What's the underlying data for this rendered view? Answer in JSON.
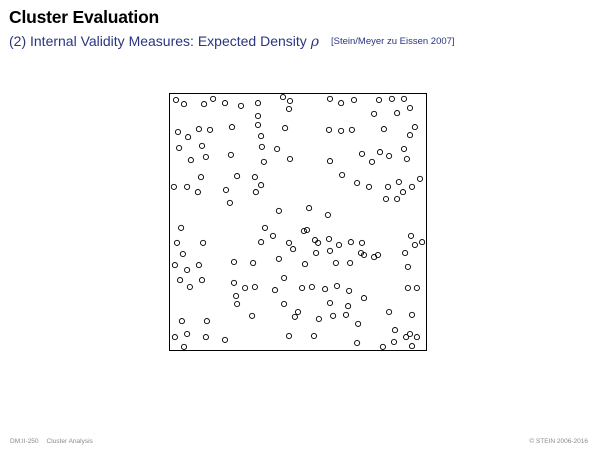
{
  "slide": {
    "title": "Cluster Evaluation",
    "subtitle": "(2) Internal Validity Measures: Expected Density",
    "symbol": "ρ",
    "citation": "[Stein/Meyer zu Eissen 2007]"
  },
  "footer": {
    "page": "DM:II-250",
    "section": "Cluster Analysis",
    "copyright": "© STEIN 2006-2016"
  },
  "colors": {
    "title": "#000000",
    "subtitle": "#2a3580",
    "footer": "#8a8a8a",
    "points": "#000000"
  },
  "chart_data": {
    "type": "scatter",
    "title": "",
    "xlabel": "",
    "ylabel": "",
    "xlim": [
      0,
      100
    ],
    "ylim": [
      0,
      100
    ],
    "grid": false,
    "points": [
      [
        2.7,
        97.3
      ],
      [
        5.8,
        95.7
      ],
      [
        13.6,
        95.7
      ],
      [
        17.1,
        97.7
      ],
      [
        21.7,
        96.1
      ],
      [
        27.9,
        95.0
      ],
      [
        34.5,
        96.1
      ],
      [
        44.2,
        98.4
      ],
      [
        46.5,
        93.8
      ],
      [
        62.4,
        97.7
      ],
      [
        66.7,
        96.1
      ],
      [
        71.7,
        97.3
      ],
      [
        81.4,
        97.3
      ],
      [
        86.4,
        97.7
      ],
      [
        91.1,
        97.7
      ],
      [
        88.4,
        92.2
      ],
      [
        93.4,
        94.2
      ],
      [
        79.5,
        91.9
      ],
      [
        34.5,
        91.1
      ],
      [
        46.9,
        96.9
      ],
      [
        3.5,
        84.9
      ],
      [
        7.4,
        82.9
      ],
      [
        11.6,
        86.0
      ],
      [
        15.9,
        85.7
      ],
      [
        24.4,
        86.8
      ],
      [
        34.5,
        87.6
      ],
      [
        45.0,
        86.4
      ],
      [
        62.0,
        85.7
      ],
      [
        66.7,
        85.3
      ],
      [
        70.9,
        85.7
      ],
      [
        83.3,
        86.0
      ],
      [
        95.3,
        86.8
      ],
      [
        93.4,
        83.7
      ],
      [
        35.7,
        83.3
      ],
      [
        3.9,
        78.7
      ],
      [
        12.8,
        79.5
      ],
      [
        14.3,
        75.2
      ],
      [
        24.0,
        76.0
      ],
      [
        36.0,
        79.1
      ],
      [
        41.9,
        78.3
      ],
      [
        46.9,
        74.4
      ],
      [
        8.5,
        74.0
      ],
      [
        36.8,
        73.3
      ],
      [
        62.4,
        73.6
      ],
      [
        74.8,
        76.4
      ],
      [
        81.8,
        77.1
      ],
      [
        91.1,
        78.3
      ],
      [
        85.3,
        75.6
      ],
      [
        92.2,
        74.4
      ],
      [
        78.7,
        73.3
      ],
      [
        12.4,
        67.4
      ],
      [
        26.4,
        67.8
      ],
      [
        33.3,
        67.4
      ],
      [
        67.1,
        68.2
      ],
      [
        72.9,
        65.1
      ],
      [
        77.5,
        63.6
      ],
      [
        84.9,
        63.6
      ],
      [
        89.1,
        65.5
      ],
      [
        97.3,
        66.7
      ],
      [
        94.2,
        63.6
      ],
      [
        1.9,
        63.6
      ],
      [
        7.0,
        63.6
      ],
      [
        11.2,
        61.6
      ],
      [
        22.1,
        62.4
      ],
      [
        33.7,
        61.6
      ],
      [
        35.7,
        64.3
      ],
      [
        23.6,
        57.4
      ],
      [
        42.6,
        54.3
      ],
      [
        54.3,
        55.4
      ],
      [
        61.6,
        52.7
      ],
      [
        84.1,
        58.9
      ],
      [
        88.4,
        58.9
      ],
      [
        90.7,
        61.6
      ],
      [
        4.7,
        47.7
      ],
      [
        37.2,
        47.7
      ],
      [
        52.3,
        46.5
      ],
      [
        56.6,
        43.0
      ],
      [
        3.1,
        41.9
      ],
      [
        5.4,
        37.6
      ],
      [
        13.2,
        41.9
      ],
      [
        35.7,
        42.2
      ],
      [
        40.3,
        44.6
      ],
      [
        46.5,
        41.9
      ],
      [
        53.5,
        46.9
      ],
      [
        57.8,
        41.9
      ],
      [
        62.0,
        43.4
      ],
      [
        65.9,
        41.1
      ],
      [
        70.5,
        42.2
      ],
      [
        74.8,
        41.9
      ],
      [
        75.6,
        37.2
      ],
      [
        79.5,
        36.4
      ],
      [
        93.8,
        44.6
      ],
      [
        95.3,
        41.1
      ],
      [
        98.1,
        42.2
      ],
      [
        91.5,
        38.0
      ],
      [
        2.3,
        33.3
      ],
      [
        7.0,
        31.4
      ],
      [
        11.6,
        33.3
      ],
      [
        25.2,
        34.5
      ],
      [
        32.6,
        34.1
      ],
      [
        42.6,
        35.7
      ],
      [
        48.1,
        39.5
      ],
      [
        52.7,
        33.7
      ],
      [
        57.0,
        38.0
      ],
      [
        62.4,
        38.8
      ],
      [
        64.7,
        34.1
      ],
      [
        70.2,
        34.1
      ],
      [
        74.4,
        38.0
      ],
      [
        81.0,
        37.2
      ],
      [
        92.6,
        32.6
      ],
      [
        4.3,
        27.5
      ],
      [
        8.1,
        24.8
      ],
      [
        12.8,
        27.5
      ],
      [
        25.2,
        26.4
      ],
      [
        29.5,
        24.4
      ],
      [
        33.3,
        24.8
      ],
      [
        41.1,
        23.6
      ],
      [
        44.6,
        28.3
      ],
      [
        51.6,
        24.4
      ],
      [
        55.4,
        24.8
      ],
      [
        60.5,
        24.0
      ],
      [
        65.1,
        25.2
      ],
      [
        69.8,
        23.3
      ],
      [
        75.6,
        20.5
      ],
      [
        92.6,
        24.4
      ],
      [
        96.1,
        24.4
      ],
      [
        26.0,
        21.3
      ],
      [
        26.4,
        18.2
      ],
      [
        44.6,
        18.2
      ],
      [
        62.4,
        18.6
      ],
      [
        69.4,
        17.4
      ],
      [
        50.0,
        15.1
      ],
      [
        63.6,
        13.6
      ],
      [
        68.6,
        14.0
      ],
      [
        85.3,
        15.1
      ],
      [
        94.2,
        14.0
      ],
      [
        32.2,
        13.6
      ],
      [
        48.8,
        13.2
      ],
      [
        58.1,
        12.4
      ],
      [
        73.3,
        10.5
      ],
      [
        5.0,
        11.6
      ],
      [
        14.7,
        11.6
      ],
      [
        2.3,
        5.4
      ],
      [
        7.0,
        6.6
      ],
      [
        14.3,
        5.4
      ],
      [
        21.7,
        4.3
      ],
      [
        46.5,
        5.8
      ],
      [
        56.2,
        5.8
      ],
      [
        87.6,
        8.1
      ],
      [
        93.4,
        6.6
      ],
      [
        96.1,
        5.4
      ],
      [
        5.8,
        1.6
      ],
      [
        72.9,
        3.1
      ],
      [
        82.9,
        1.6
      ],
      [
        87.2,
        3.5
      ],
      [
        94.2,
        1.9
      ],
      [
        91.9,
        5.4
      ]
    ]
  }
}
